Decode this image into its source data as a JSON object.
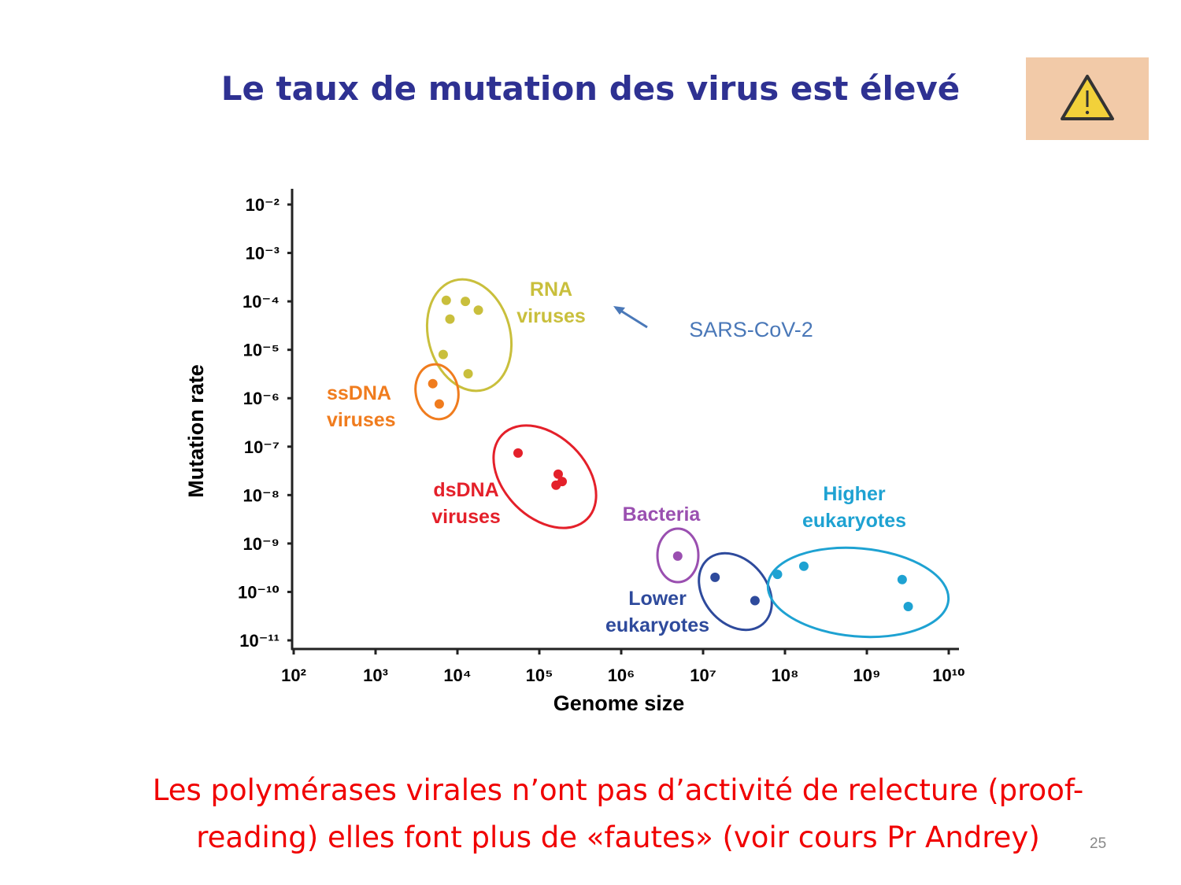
{
  "title": "Le taux de mutation des virus est élevé",
  "footer": "Les polymérases virales n’ont pas d’activité de relecture (proof-reading) elles font plus de «fautes» (voir cours Pr Andrey)",
  "page_number": "25",
  "chart_data": {
    "type": "scatter",
    "x_label": "Genome size",
    "y_label": "Mutation rate",
    "annotation": "SARS-CoV-2",
    "x_log": true,
    "y_log": true,
    "xlim": [
      100,
      10000000000
    ],
    "ylim": [
      1e-11,
      0.01
    ],
    "xticks": [
      {
        "value": 100,
        "label": "10²"
      },
      {
        "value": 1000,
        "label": "10³"
      },
      {
        "value": 10000,
        "label": "10⁴"
      },
      {
        "value": 100000,
        "label": "10⁵"
      },
      {
        "value": 1000000,
        "label": "10⁶"
      },
      {
        "value": 10000000,
        "label": "10⁷"
      },
      {
        "value": 100000000,
        "label": "10⁸"
      },
      {
        "value": 1000000000,
        "label": "10⁹"
      },
      {
        "value": 10000000000,
        "label": "10¹⁰"
      }
    ],
    "yticks": [
      {
        "value": 0.01,
        "label": "10⁻²"
      },
      {
        "value": 0.001,
        "label": "10⁻³"
      },
      {
        "value": 0.0001,
        "label": "10⁻⁴"
      },
      {
        "value": 1e-05,
        "label": "10⁻⁵"
      },
      {
        "value": 1e-06,
        "label": "10⁻⁶"
      },
      {
        "value": 1e-07,
        "label": "10⁻⁷"
      },
      {
        "value": 1e-08,
        "label": "10⁻⁸"
      },
      {
        "value": 1e-09,
        "label": "10⁻⁹"
      },
      {
        "value": 1e-10,
        "label": "10⁻¹⁰"
      },
      {
        "value": 1e-11,
        "label": "10⁻¹¹"
      }
    ],
    "series": [
      {
        "name": "RNA viruses",
        "color": "#c9bf3c",
        "x": [
          7300,
          12500,
          18000,
          8100,
          6700,
          13500
        ],
        "values": [
          0.000105,
          0.0001,
          6.6e-05,
          4.3e-05,
          8e-06,
          3.2e-06
        ]
      },
      {
        "name": "ssDNA viruses",
        "color": "#f07c1e",
        "x": [
          5000,
          6000
        ],
        "values": [
          2e-06,
          7.6e-07
        ]
      },
      {
        "name": "dsDNA viruses",
        "color": "#e4202a",
        "x": [
          55000,
          170000,
          190000,
          160000
        ],
        "values": [
          7.4e-08,
          2.7e-08,
          1.9e-08,
          1.6e-08
        ]
      },
      {
        "name": "Bacteria",
        "color": "#9a4fb0",
        "x": [
          4900000
        ],
        "values": [
          5.5e-10
        ]
      },
      {
        "name": "Lower eukaryotes",
        "color": "#2e4a9c",
        "x": [
          14000000,
          43000000
        ],
        "values": [
          2e-10,
          6.6e-11
        ]
      },
      {
        "name": "Higher eukaryotes",
        "color": "#1ea2d2",
        "x": [
          81000000,
          170000000,
          2700000000,
          3200000000
        ],
        "values": [
          2.3e-10,
          3.4e-10,
          1.8e-10,
          5e-11
        ]
      }
    ]
  }
}
